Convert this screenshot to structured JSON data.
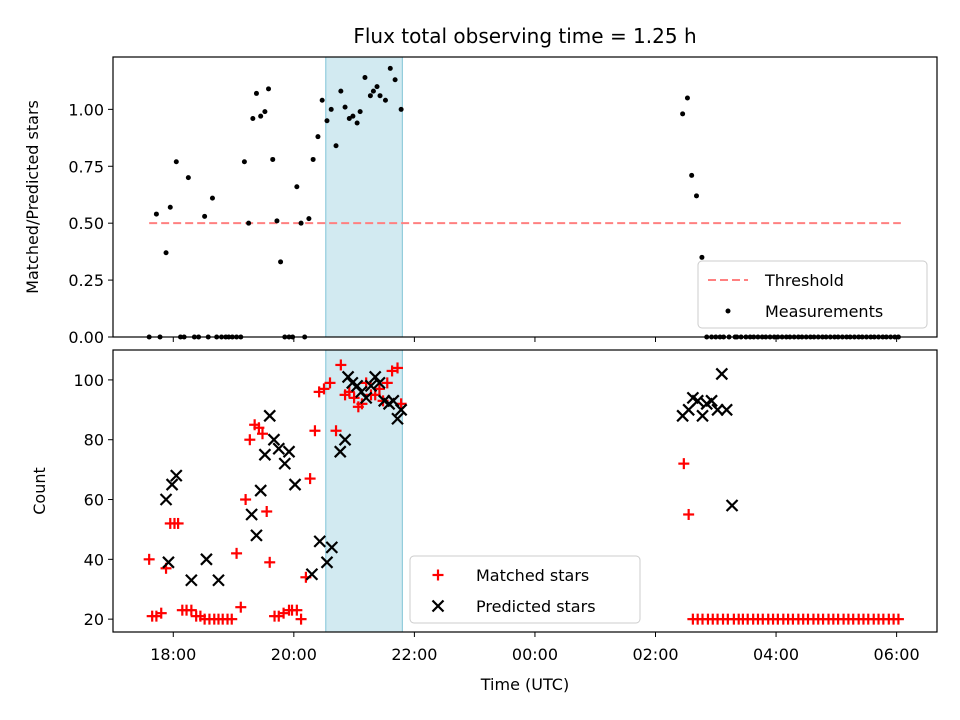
{
  "title": "Flux total observing time = 1.25 h",
  "chart_data": [
    {
      "type": "scatter",
      "panel": "top",
      "ylabel": "Matched/Predicted stars",
      "xlabel": "",
      "xlim": [
        17.0,
        30.67
      ],
      "ylim": [
        0.0,
        1.23
      ],
      "y_ticks": [
        0.0,
        0.25,
        0.5,
        0.75,
        1.0
      ],
      "y_tick_labels": [
        "0.00",
        "0.25",
        "0.50",
        "0.75",
        "1.00"
      ],
      "shaded_interval": [
        20.53,
        21.8
      ],
      "shade_color": "#add8e6",
      "threshold": {
        "name": "Threshold",
        "value": 0.5,
        "x_range": [
          17.6,
          30.07
        ],
        "color": "#ff8080"
      },
      "legend": [
        "Threshold",
        "Measurements"
      ],
      "legend_position": "lower-right",
      "series": [
        {
          "name": "Measurements",
          "color": "#000000",
          "x": [
            17.6,
            17.72,
            17.78,
            17.88,
            17.95,
            18.05,
            18.12,
            18.18,
            18.25,
            18.35,
            18.42,
            18.52,
            18.58,
            18.65,
            18.72,
            18.8,
            18.87,
            18.92,
            18.98,
            19.05,
            19.12,
            19.18,
            19.25,
            19.32,
            19.38,
            19.45,
            19.52,
            19.58,
            19.65,
            19.72,
            19.78,
            19.85,
            19.92,
            19.98,
            20.05,
            20.12,
            20.18,
            20.25,
            20.32,
            20.4,
            20.47,
            20.55,
            20.62,
            20.7,
            20.78,
            20.85,
            20.92,
            20.98,
            21.05,
            21.1,
            21.18,
            21.27,
            21.32,
            21.38,
            21.43,
            21.52,
            21.6,
            21.68,
            21.78,
            26.45,
            26.53,
            26.6,
            26.68,
            26.77,
            26.85,
            26.93,
            27.0,
            27.07,
            27.13,
            27.22,
            27.32,
            27.35,
            27.42,
            27.5,
            27.57,
            27.63,
            27.7,
            27.77,
            27.83,
            27.9,
            27.97,
            28.03,
            28.1,
            28.17,
            28.23,
            28.3,
            28.37,
            28.43,
            28.5,
            28.57,
            28.63,
            28.7,
            28.77,
            28.83,
            28.9,
            28.97,
            29.03,
            29.1,
            29.17,
            29.23,
            29.3,
            29.37,
            29.43,
            29.5,
            29.57,
            29.63,
            29.7,
            29.77,
            29.83,
            29.9,
            29.97,
            30.03
          ],
          "y": [
            0.0,
            0.54,
            0.0,
            0.37,
            0.57,
            0.77,
            0.0,
            0.0,
            0.7,
            0.0,
            0.0,
            0.53,
            0.0,
            0.61,
            0.0,
            0.0,
            0.0,
            0.0,
            0.0,
            0.0,
            0.0,
            0.77,
            0.5,
            0.96,
            1.07,
            0.97,
            0.99,
            1.09,
            0.78,
            0.51,
            0.33,
            0.0,
            0.0,
            0.0,
            0.66,
            0.5,
            0.0,
            0.52,
            0.78,
            0.88,
            1.04,
            0.95,
            1.0,
            0.84,
            1.08,
            1.01,
            0.96,
            0.97,
            0.94,
            0.99,
            1.14,
            1.06,
            1.08,
            1.1,
            1.06,
            1.04,
            1.18,
            1.13,
            1.0,
            0.98,
            1.05,
            0.71,
            0.62,
            0.35,
            0.0,
            0.0,
            0.0,
            0.0,
            0.0,
            0.0,
            0.0,
            0.0,
            0.0,
            0.0,
            0.0,
            0.0,
            0.0,
            0.0,
            0.0,
            0.0,
            0.0,
            0.0,
            0.0,
            0.0,
            0.0,
            0.0,
            0.0,
            0.0,
            0.0,
            0.0,
            0.0,
            0.0,
            0.0,
            0.0,
            0.0,
            0.0,
            0.0,
            0.0,
            0.0,
            0.0,
            0.0,
            0.0,
            0.0,
            0.0,
            0.0,
            0.0,
            0.0,
            0.0,
            0.0,
            0.0,
            0.0,
            0.0
          ]
        }
      ]
    },
    {
      "type": "scatter",
      "panel": "bottom",
      "ylabel": "Count",
      "xlabel": "Time (UTC)",
      "xlim": [
        17.0,
        30.67
      ],
      "ylim": [
        15.7,
        110.0
      ],
      "y_ticks": [
        20,
        40,
        60,
        80,
        100
      ],
      "y_tick_labels": [
        "20",
        "40",
        "60",
        "80",
        "100"
      ],
      "x_ticks": [
        18,
        20,
        22,
        24,
        26,
        28,
        30
      ],
      "x_tick_labels": [
        "18:00",
        "20:00",
        "22:00",
        "00:00",
        "02:00",
        "04:00",
        "06:00"
      ],
      "shaded_interval": [
        20.53,
        21.8
      ],
      "shade_color": "#add8e6",
      "legend": [
        "Matched stars",
        "Predicted stars"
      ],
      "legend_position": "lower-center",
      "series": [
        {
          "name": "Matched stars",
          "marker": "plus",
          "color": "#ff0000",
          "x": [
            17.6,
            17.65,
            17.72,
            17.8,
            17.88,
            17.95,
            18.02,
            18.08,
            18.15,
            18.22,
            18.3,
            18.38,
            18.45,
            18.52,
            18.6,
            18.68,
            18.75,
            18.82,
            18.9,
            18.97,
            19.05,
            19.12,
            19.2,
            19.27,
            19.35,
            19.42,
            19.48,
            19.55,
            19.6,
            19.68,
            19.75,
            19.83,
            19.92,
            19.97,
            20.05,
            20.12,
            20.2,
            20.27,
            20.35,
            20.42,
            20.5,
            20.6,
            20.7,
            20.78,
            20.85,
            20.92,
            21.0,
            21.07,
            21.13,
            21.2,
            21.28,
            21.35,
            21.42,
            21.48,
            21.55,
            21.63,
            21.72,
            21.78,
            26.47,
            26.55,
            26.62,
            26.7,
            26.78,
            26.87,
            26.95,
            27.03,
            27.12,
            27.2,
            27.3,
            27.38,
            27.45,
            27.53,
            27.62,
            27.7,
            27.78,
            27.87,
            27.95,
            28.03,
            28.12,
            28.2,
            28.28,
            28.37,
            28.45,
            28.53,
            28.62,
            28.7,
            28.78,
            28.87,
            28.95,
            29.03,
            29.12,
            29.2,
            29.28,
            29.37,
            29.45,
            29.53,
            29.62,
            29.7,
            29.78,
            29.87,
            29.95,
            30.03
          ],
          "y": [
            40,
            21,
            21,
            22,
            37,
            52,
            52,
            52,
            23,
            23,
            23,
            21,
            21,
            20,
            20,
            20,
            20,
            20,
            20,
            20,
            42,
            24,
            60,
            80,
            85,
            84,
            82,
            56,
            39,
            21,
            21,
            22,
            23,
            23,
            23,
            20,
            34,
            67,
            83,
            96,
            97,
            99,
            83,
            105,
            95,
            96,
            94,
            91,
            92,
            99,
            95,
            95,
            97,
            93,
            99,
            103,
            104,
            92,
            72,
            55,
            20,
            20,
            20,
            20,
            20,
            20,
            20,
            20,
            20,
            20,
            20,
            20,
            20,
            20,
            20,
            20,
            20,
            20,
            20,
            20,
            20,
            20,
            20,
            20,
            20,
            20,
            20,
            20,
            20,
            20,
            20,
            20,
            20,
            20,
            20,
            20,
            20,
            20,
            20,
            20,
            20,
            20
          ]
        },
        {
          "name": "Predicted stars",
          "marker": "x",
          "color": "#000000",
          "x": [
            17.92,
            17.88,
            17.98,
            18.05,
            18.3,
            18.55,
            18.75,
            19.3,
            19.38,
            19.45,
            19.52,
            19.6,
            19.67,
            19.75,
            19.85,
            19.92,
            20.02,
            20.3,
            20.43,
            20.55,
            20.63,
            20.77,
            20.85,
            20.9,
            20.97,
            21.05,
            21.12,
            21.2,
            21.28,
            21.35,
            21.42,
            21.5,
            21.58,
            21.65,
            21.72,
            21.78,
            26.45,
            26.55,
            26.62,
            26.7,
            26.78,
            26.85,
            26.93,
            27.03,
            27.1,
            27.18,
            27.27
          ],
          "y": [
            39,
            60,
            65,
            68,
            33,
            40,
            33,
            55,
            48,
            63,
            75,
            88,
            80,
            77,
            72,
            76,
            65,
            35,
            46,
            39,
            44,
            76,
            80,
            101,
            99,
            98,
            96,
            94,
            98,
            101,
            99,
            93,
            92,
            93,
            87,
            90,
            88,
            90,
            94,
            93,
            88,
            92,
            93,
            90,
            102,
            90,
            58
          ]
        }
      ]
    }
  ]
}
